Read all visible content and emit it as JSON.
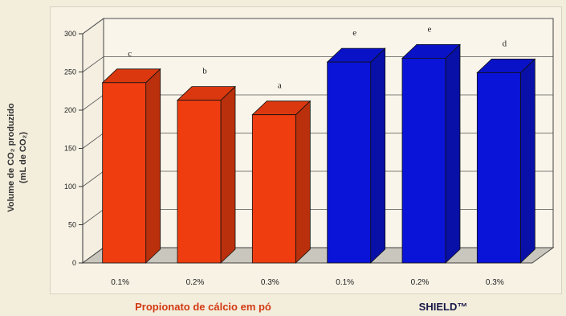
{
  "ylabel_line1": "Volume de CO₂ produzido",
  "ylabel_line2": "(mL de CO₂)",
  "groups": [
    {
      "label": "Propionato de cálcio em pó",
      "color": "#d23a12"
    },
    {
      "label": "SHIELD™",
      "color": "#1a1a4a"
    }
  ],
  "chart_data": {
    "type": "bar",
    "categories": [
      "0.1%",
      "0.2%",
      "0.3%",
      "0.1%",
      "0.2%",
      "0.3%"
    ],
    "values": [
      236,
      213,
      194,
      263,
      268,
      249
    ],
    "bar_groups": [
      "Propionato de cálcio em pó",
      "Propionato de cálcio em pó",
      "Propionato de cálcio em pó",
      "SHIELD™",
      "SHIELD™",
      "SHIELD™"
    ],
    "bar_colors": [
      "#ef3d10",
      "#ef3d10",
      "#ef3d10",
      "#0a14d8",
      "#0a14d8",
      "#0a14d8"
    ],
    "annotations": [
      "c",
      "b",
      "a",
      "e",
      "e",
      "d"
    ],
    "ylim": [
      0,
      300
    ],
    "yticks": [
      0,
      50,
      100,
      150,
      200,
      250,
      300
    ],
    "ylabel": "Volume de CO₂ produzido (mL de CO₂)",
    "xlabel": "",
    "grid": true,
    "style": "3d"
  }
}
